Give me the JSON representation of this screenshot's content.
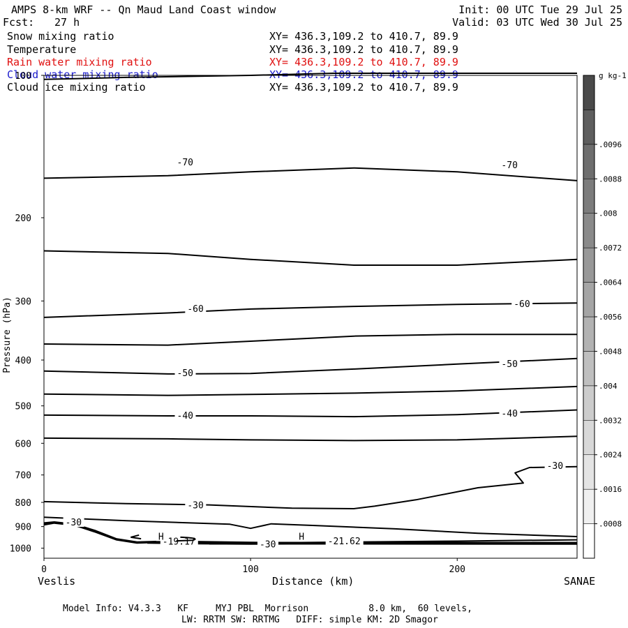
{
  "header": {
    "title": "AMPS 8-km WRF -- Qn Maud Land Coast window",
    "init": "Init: 00 UTC Tue 29 Jul 25",
    "fcst_label": "Fcst:",
    "fcst_value": "27 h",
    "valid": "Valid: 03 UTC Wed 30 Jul 25"
  },
  "fields": [
    {
      "name": "Snow mixing ratio",
      "xy": "XY= 436.3,109.2 to 410.7, 89.9",
      "color": "#000000"
    },
    {
      "name": "Temperature",
      "xy": "XY= 436.3,109.2 to 410.7, 89.9",
      "color": "#000000"
    },
    {
      "name": "Rain water mixing ratio",
      "xy": "XY= 436.3,109.2 to 410.7, 89.9",
      "color": "#e01010"
    },
    {
      "name": "Cloud water mixing ratio",
      "xy": "XY= 436.3,109.2 to 410.7, 89.9",
      "color": "#1a1acc"
    },
    {
      "name": "Cloud ice mixing ratio",
      "xy": "XY= 436.3,109.2 to 410.7, 89.9",
      "color": "#000000"
    }
  ],
  "chart_data": {
    "type": "line",
    "xlabel": "Distance (km)",
    "ylabel": "Pressure (hPa)",
    "xlim": [
      0,
      258
    ],
    "ylim": [
      1050,
      100
    ],
    "y_scale": "log",
    "x_ticks": [
      0,
      100,
      200
    ],
    "y_ticks": [
      100,
      200,
      300,
      400,
      500,
      600,
      700,
      800,
      900,
      1000
    ],
    "left_endpoint": "Veslis",
    "right_endpoint": "SANAE",
    "colorbar": {
      "unit": "g kg-1",
      "ticks": [
        ".0008",
        ".0016",
        ".0024",
        ".0032",
        ".004",
        ".0048",
        ".0056",
        ".0064",
        ".0072",
        ".008",
        ".0088",
        ".0096"
      ],
      "colors": [
        "#ffffff",
        "#f0f0f0",
        "#e4e4e4",
        "#d8d8d8",
        "#cccccc",
        "#bfbfbf",
        "#b2b2b2",
        "#a5a5a5",
        "#989898",
        "#8a8a8a",
        "#7c7c7c",
        "#6e6e6e",
        "#5e5e5e",
        "#4a4a4a"
      ]
    },
    "series": [
      {
        "x": [
          0,
          40,
          100,
          140,
          200,
          258
        ],
        "y": [
          102,
          101,
          100,
          99,
          99,
          99
        ]
      },
      {
        "x": [
          0,
          60,
          100,
          150,
          200,
          258
        ],
        "y": [
          165,
          163,
          160,
          157,
          160,
          167
        ]
      },
      {
        "x": [
          0,
          60,
          100,
          150,
          200,
          258
        ],
        "y": [
          235,
          238,
          245,
          252,
          252,
          245
        ]
      },
      {
        "x": [
          0,
          60,
          100,
          150,
          200,
          258
        ],
        "y": [
          325,
          318,
          312,
          308,
          305,
          303
        ]
      },
      {
        "x": [
          0,
          60,
          100,
          150,
          200,
          258
        ],
        "y": [
          370,
          372,
          365,
          356,
          353,
          353
        ]
      },
      {
        "x": [
          0,
          60,
          100,
          150,
          200,
          258
        ],
        "y": [
          422,
          428,
          427,
          418,
          408,
          397
        ]
      },
      {
        "x": [
          0,
          60,
          100,
          150,
          200,
          258
        ],
        "y": [
          472,
          475,
          473,
          470,
          465,
          455
        ]
      },
      {
        "x": [
          0,
          60,
          100,
          150,
          200,
          258
        ],
        "y": [
          523,
          525,
          525,
          527,
          522,
          510
        ]
      },
      {
        "x": [
          0,
          60,
          100,
          150,
          200,
          258
        ],
        "y": [
          585,
          587,
          590,
          592,
          590,
          580
        ]
      },
      {
        "x": [
          0,
          40,
          80,
          120,
          150,
          160,
          180,
          210,
          232,
          228,
          235,
          258
        ],
        "y": [
          797,
          805,
          810,
          823,
          825,
          815,
          790,
          745,
          728,
          693,
          675,
          672
        ]
      },
      {
        "x": [
          0,
          40,
          90,
          100,
          110,
          130,
          170,
          210,
          258
        ],
        "y": [
          860,
          875,
          890,
          908,
          888,
          895,
          910,
          930,
          945
        ]
      },
      {
        "x": [
          0,
          5,
          15,
          25,
          35,
          45,
          60,
          100,
          150,
          200,
          258
        ],
        "y": [
          893,
          885,
          895,
          925,
          960,
          975,
          970,
          975,
          970,
          966,
          960
        ]
      },
      {
        "x": [
          0,
          5,
          15,
          25,
          35,
          45,
          60,
          100,
          150,
          200,
          258
        ],
        "y": [
          888,
          882,
          892,
          922,
          957,
          972,
          968,
          973,
          973,
          973,
          973
        ]
      },
      {
        "x": [
          0,
          5,
          15,
          25,
          35,
          45,
          60,
          100,
          150,
          200,
          258
        ],
        "y": [
          884,
          880,
          890,
          918,
          955,
          970,
          966,
          972,
          975,
          976,
          976
        ]
      },
      {
        "x": [
          50,
          70,
          100,
          150,
          200,
          258
        ],
        "y": [
          975,
          978,
          980,
          978,
          978,
          978
        ]
      }
    ],
    "contour_labels": [
      {
        "text": "-70",
        "x": 64,
        "y": 153
      },
      {
        "text": "-70",
        "x": 221,
        "y": 155
      },
      {
        "text": "-60",
        "x": 69,
        "y": 312
      },
      {
        "text": "-60",
        "x": 227,
        "y": 305
      },
      {
        "text": "-50",
        "x": 64,
        "y": 427
      },
      {
        "text": "-50",
        "x": 221,
        "y": 408
      },
      {
        "text": "-40",
        "x": 64,
        "y": 525
      },
      {
        "text": "-40",
        "x": 221,
        "y": 520
      },
      {
        "text": "-30",
        "x": 69,
        "y": 812
      },
      {
        "text": "-30",
        "x": 243,
        "y": 670
      },
      {
        "text": "-30",
        "x": 10,
        "y": 883
      },
      {
        "text": "-30",
        "x": 104,
        "y": 982
      },
      {
        "text": "-19.17",
        "x": 57,
        "y": 969
      },
      {
        "text": "-21.62",
        "x": 137,
        "y": 968
      },
      {
        "text": "H",
        "x": 55,
        "y": 946
      },
      {
        "text": "H",
        "x": 123,
        "y": 946
      }
    ]
  },
  "footer": {
    "line1": "Model Info: V4.3.3   KF     MYJ PBL  Morrison           8.0 km,  60 levels,",
    "line2": "LW: RRTM SW: RRTMG   DIFF: simple KM: 2D Smagor"
  }
}
